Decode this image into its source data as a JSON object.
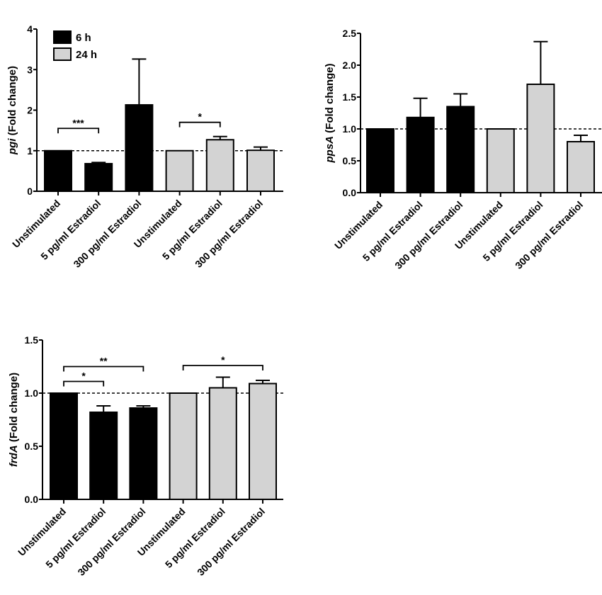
{
  "chart_data": [
    {
      "type": "bar",
      "ylabel_gene": "pgi",
      "ylabel_rest": " (Fold change)",
      "categories": [
        "Unstimulated",
        "5 pg/ml Estradiol",
        "300 pg/ml Estradiol",
        "Unstimulated",
        "5 pg/ml Estradiol",
        "300 pg/ml Estradiol"
      ],
      "groups": [
        "6 h",
        "6 h",
        "6 h",
        "24 h",
        "24 h",
        "24 h"
      ],
      "values": [
        1.0,
        0.68,
        2.13,
        1.0,
        1.27,
        1.01
      ],
      "error_upper": [
        1.0,
        0.71,
        3.26,
        1.0,
        1.35,
        1.09
      ],
      "ylim": [
        0,
        4
      ],
      "yticks": [
        "0",
        "1",
        "2",
        "3",
        "4"
      ],
      "ytick_values": [
        0,
        1,
        2,
        3,
        4
      ],
      "reference_line": 1,
      "legend": [
        {
          "label": "6 h",
          "color": "#000000"
        },
        {
          "label": "24 h",
          "color": "#d3d3d3"
        }
      ],
      "legend_position": "top-left",
      "significance": [
        {
          "from": 0,
          "to": 1,
          "label": "***"
        },
        {
          "from": 3,
          "to": 4,
          "label": "*"
        }
      ]
    },
    {
      "type": "bar",
      "ylabel_gene": "ppsA",
      "ylabel_rest": " (Fold change)",
      "categories": [
        "Unstimulated",
        "5 pg/ml Estradiol",
        "300 pg/ml Estradiol",
        "Unstimulated",
        "5 pg/ml Estradiol",
        "300 pg/ml Estradiol"
      ],
      "groups": [
        "6 h",
        "6 h",
        "6 h",
        "24 h",
        "24 h",
        "24 h"
      ],
      "values": [
        1.0,
        1.18,
        1.35,
        1.0,
        1.7,
        0.8
      ],
      "error_upper": [
        1.0,
        1.48,
        1.55,
        1.0,
        2.37,
        0.9
      ],
      "ylim": [
        0,
        2.5
      ],
      "yticks": [
        "0.0",
        "0.5",
        "1.0",
        "1.5",
        "2.0",
        "2.5"
      ],
      "ytick_values": [
        0,
        0.5,
        1,
        1.5,
        2,
        2.5
      ],
      "reference_line": 1,
      "significance": []
    },
    {
      "type": "bar",
      "ylabel_gene": "frdA",
      "ylabel_rest": " (Fold change)",
      "categories": [
        "Unstimulated",
        "5 pg/ml Estradiol",
        "300 pg/ml Estradiol",
        "Unstimulated",
        "5 pg/ml Estradiol",
        "300 pg/ml Estradiol"
      ],
      "groups": [
        "6 h",
        "6 h",
        "6 h",
        "24 h",
        "24 h",
        "24 h"
      ],
      "values": [
        1.0,
        0.82,
        0.86,
        1.0,
        1.05,
        1.09
      ],
      "error_upper": [
        1.0,
        0.88,
        0.88,
        1.0,
        1.15,
        1.12
      ],
      "ylim": [
        0,
        1.5
      ],
      "yticks": [
        "0.0",
        "0.5",
        "1.0",
        "1.5"
      ],
      "ytick_values": [
        0,
        0.5,
        1,
        1.5
      ],
      "reference_line": 1,
      "significance": [
        {
          "from": 0,
          "to": 1,
          "label": "*"
        },
        {
          "from": 0,
          "to": 2,
          "label": "**"
        },
        {
          "from": 3,
          "to": 5,
          "label": "*"
        }
      ]
    }
  ],
  "colors": {
    "6 h": "#000000",
    "24 h": "#d3d3d3"
  }
}
